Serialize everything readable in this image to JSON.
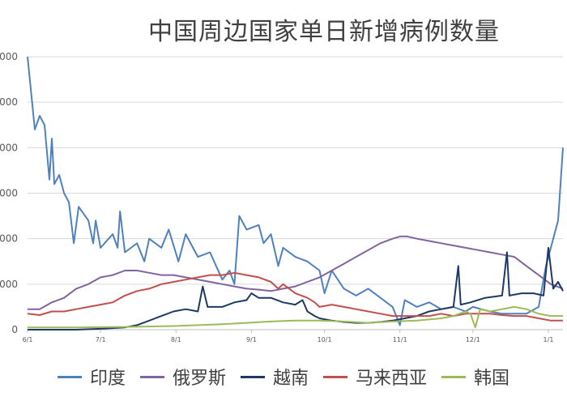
{
  "chart_data": {
    "type": "line",
    "title": "中国周边国家单日新增病例数量",
    "y_tick_labels": [
      "0",
      "000",
      "000",
      "000",
      "000",
      "000",
      "000"
    ],
    "y_tick_values": [
      0,
      10000,
      20000,
      30000,
      40000,
      50000,
      60000
    ],
    "ylim": [
      0,
      60000
    ],
    "x_tick_labels": [
      "6/1",
      "7/1",
      "8/1",
      "9/1",
      "10/1",
      "11/1",
      "12/1",
      "1/1"
    ],
    "x_tick_days": [
      0,
      30,
      61,
      92,
      122,
      153,
      183,
      214
    ],
    "xlim_days": [
      0,
      220
    ],
    "grid": "horizontal",
    "legend_position": "bottom",
    "series": [
      {
        "name": "印度",
        "color": "#4F81BD",
        "points": [
          [
            0,
            60000
          ],
          [
            3,
            44000
          ],
          [
            5,
            47000
          ],
          [
            7,
            45000
          ],
          [
            9,
            33000
          ],
          [
            10,
            42000
          ],
          [
            11,
            32000
          ],
          [
            13,
            34000
          ],
          [
            15,
            30000
          ],
          [
            17,
            28000
          ],
          [
            19,
            19000
          ],
          [
            21,
            27000
          ],
          [
            25,
            24000
          ],
          [
            27,
            19000
          ],
          [
            28,
            24000
          ],
          [
            30,
            18000
          ],
          [
            35,
            21000
          ],
          [
            37,
            18000
          ],
          [
            38,
            26000
          ],
          [
            40,
            17000
          ],
          [
            45,
            19000
          ],
          [
            48,
            15000
          ],
          [
            50,
            20000
          ],
          [
            55,
            18000
          ],
          [
            58,
            22000
          ],
          [
            62,
            15000
          ],
          [
            65,
            21000
          ],
          [
            70,
            16000
          ],
          [
            75,
            17000
          ],
          [
            80,
            11000
          ],
          [
            83,
            13000
          ],
          [
            85,
            10000
          ],
          [
            87,
            25000
          ],
          [
            90,
            22000
          ],
          [
            95,
            23000
          ],
          [
            97,
            19000
          ],
          [
            100,
            21000
          ],
          [
            103,
            14000
          ],
          [
            105,
            18000
          ],
          [
            110,
            16000
          ],
          [
            115,
            15000
          ],
          [
            120,
            13000
          ],
          [
            122,
            8000
          ],
          [
            125,
            13000
          ],
          [
            130,
            9000
          ],
          [
            135,
            7500
          ],
          [
            140,
            9000
          ],
          [
            145,
            7000
          ],
          [
            150,
            5000
          ],
          [
            153,
            1000
          ],
          [
            155,
            6500
          ],
          [
            160,
            5000
          ],
          [
            165,
            6000
          ],
          [
            170,
            4500
          ],
          [
            175,
            5000
          ],
          [
            180,
            4000
          ],
          [
            183,
            5000
          ],
          [
            190,
            4000
          ],
          [
            195,
            3500
          ],
          [
            200,
            3500
          ],
          [
            205,
            3500
          ],
          [
            210,
            5000
          ],
          [
            213,
            14000
          ],
          [
            216,
            20000
          ],
          [
            218,
            24000
          ],
          [
            220,
            40000
          ]
        ]
      },
      {
        "name": "俄罗斯",
        "color": "#8064A2",
        "points": [
          [
            0,
            4500
          ],
          [
            5,
            4500
          ],
          [
            10,
            6000
          ],
          [
            15,
            7000
          ],
          [
            20,
            9000
          ],
          [
            25,
            10000
          ],
          [
            30,
            11500
          ],
          [
            35,
            12000
          ],
          [
            40,
            13000
          ],
          [
            45,
            13000
          ],
          [
            50,
            12500
          ],
          [
            55,
            12000
          ],
          [
            60,
            12000
          ],
          [
            65,
            11500
          ],
          [
            70,
            11000
          ],
          [
            75,
            10500
          ],
          [
            80,
            10000
          ],
          [
            85,
            9500
          ],
          [
            90,
            9000
          ],
          [
            95,
            8800
          ],
          [
            100,
            8500
          ],
          [
            105,
            9000
          ],
          [
            110,
            9500
          ],
          [
            115,
            10500
          ],
          [
            120,
            11500
          ],
          [
            125,
            13000
          ],
          [
            130,
            14500
          ],
          [
            135,
            16000
          ],
          [
            140,
            17500
          ],
          [
            145,
            19000
          ],
          [
            150,
            20000
          ],
          [
            153,
            20500
          ],
          [
            156,
            20500
          ],
          [
            160,
            20000
          ],
          [
            165,
            19500
          ],
          [
            170,
            19000
          ],
          [
            175,
            18500
          ],
          [
            180,
            18000
          ],
          [
            185,
            17500
          ],
          [
            190,
            17000
          ],
          [
            195,
            16500
          ],
          [
            200,
            16000
          ],
          [
            205,
            14000
          ],
          [
            210,
            12000
          ],
          [
            215,
            10000
          ],
          [
            220,
            9000
          ]
        ]
      },
      {
        "name": "越南",
        "color": "#1F3864",
        "points": [
          [
            0,
            0
          ],
          [
            20,
            0
          ],
          [
            30,
            200
          ],
          [
            40,
            500
          ],
          [
            45,
            1000
          ],
          [
            50,
            2000
          ],
          [
            55,
            3000
          ],
          [
            60,
            4000
          ],
          [
            65,
            4500
          ],
          [
            70,
            4000
          ],
          [
            72,
            9500
          ],
          [
            74,
            5000
          ],
          [
            80,
            5000
          ],
          [
            85,
            6000
          ],
          [
            90,
            6500
          ],
          [
            92,
            8000
          ],
          [
            95,
            7000
          ],
          [
            100,
            7000
          ],
          [
            105,
            6000
          ],
          [
            110,
            5500
          ],
          [
            113,
            6500
          ],
          [
            115,
            4000
          ],
          [
            118,
            3000
          ],
          [
            120,
            2500
          ],
          [
            125,
            2000
          ],
          [
            130,
            1700
          ],
          [
            135,
            1500
          ],
          [
            140,
            1500
          ],
          [
            145,
            1700
          ],
          [
            150,
            2000
          ],
          [
            155,
            2500
          ],
          [
            160,
            3000
          ],
          [
            165,
            4000
          ],
          [
            170,
            4500
          ],
          [
            175,
            5000
          ],
          [
            177,
            14000
          ],
          [
            178,
            5500
          ],
          [
            182,
            6000
          ],
          [
            188,
            7000
          ],
          [
            195,
            7500
          ],
          [
            197,
            17000
          ],
          [
            198,
            7500
          ],
          [
            203,
            8000
          ],
          [
            208,
            8000
          ],
          [
            212,
            7500
          ],
          [
            214,
            18000
          ],
          [
            216,
            9000
          ],
          [
            218,
            10500
          ],
          [
            220,
            8500
          ]
        ]
      },
      {
        "name": "马来西亚",
        "color": "#C0504D",
        "points": [
          [
            0,
            3500
          ],
          [
            5,
            3200
          ],
          [
            10,
            4000
          ],
          [
            15,
            4000
          ],
          [
            20,
            4500
          ],
          [
            25,
            5000
          ],
          [
            30,
            5500
          ],
          [
            35,
            6000
          ],
          [
            40,
            7500
          ],
          [
            45,
            8500
          ],
          [
            50,
            9000
          ],
          [
            55,
            10000
          ],
          [
            60,
            10500
          ],
          [
            65,
            11000
          ],
          [
            70,
            11500
          ],
          [
            75,
            12000
          ],
          [
            80,
            12000
          ],
          [
            85,
            12500
          ],
          [
            90,
            12000
          ],
          [
            95,
            11500
          ],
          [
            100,
            10500
          ],
          [
            103,
            9000
          ],
          [
            105,
            10000
          ],
          [
            110,
            8000
          ],
          [
            115,
            7000
          ],
          [
            118,
            6000
          ],
          [
            120,
            5000
          ],
          [
            125,
            5500
          ],
          [
            130,
            5000
          ],
          [
            135,
            4500
          ],
          [
            140,
            4000
          ],
          [
            145,
            3500
          ],
          [
            150,
            3000
          ],
          [
            155,
            3000
          ],
          [
            160,
            3000
          ],
          [
            165,
            3000
          ],
          [
            170,
            3500
          ],
          [
            175,
            3000
          ],
          [
            180,
            3500
          ],
          [
            185,
            3500
          ],
          [
            190,
            3500
          ],
          [
            195,
            3200
          ],
          [
            200,
            3000
          ],
          [
            205,
            3000
          ],
          [
            210,
            2500
          ],
          [
            215,
            2000
          ],
          [
            220,
            2000
          ]
        ]
      },
      {
        "name": "韩国",
        "color": "#9BBB59",
        "points": [
          [
            0,
            500
          ],
          [
            20,
            500
          ],
          [
            40,
            600
          ],
          [
            60,
            800
          ],
          [
            80,
            1200
          ],
          [
            90,
            1500
          ],
          [
            100,
            1800
          ],
          [
            110,
            2000
          ],
          [
            120,
            2000
          ],
          [
            130,
            1800
          ],
          [
            140,
            1500
          ],
          [
            150,
            1800
          ],
          [
            160,
            2000
          ],
          [
            170,
            2500
          ],
          [
            175,
            3000
          ],
          [
            180,
            4000
          ],
          [
            182,
            3500
          ],
          [
            184,
            500
          ],
          [
            186,
            4500
          ],
          [
            190,
            4000
          ],
          [
            195,
            4500
          ],
          [
            200,
            5000
          ],
          [
            205,
            4500
          ],
          [
            210,
            3500
          ],
          [
            215,
            3000
          ],
          [
            220,
            3000
          ]
        ]
      }
    ]
  }
}
